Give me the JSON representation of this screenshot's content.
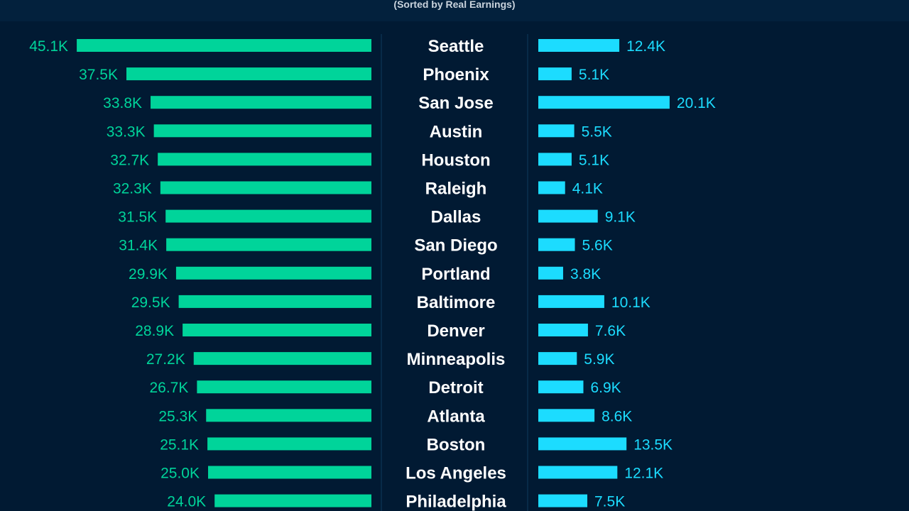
{
  "subtitle": "(Sorted by Real Earnings)",
  "colors": {
    "background": "#011a33",
    "header": "#03213d",
    "left_bar": "#00d49a",
    "right_bar": "#1cdcff",
    "city_text": "#ffffff",
    "divider": "#0f3a5c"
  },
  "chart_data": {
    "type": "bar",
    "orientation": "horizontal",
    "categories": [
      "Seattle",
      "Phoenix",
      "San Jose",
      "Austin",
      "Houston",
      "Raleigh",
      "Dallas",
      "San Diego",
      "Portland",
      "Baltimore",
      "Denver",
      "Minneapolis",
      "Detroit",
      "Atlanta",
      "Boston",
      "Los Angeles",
      "Philadelphia"
    ],
    "series": [
      {
        "values": [
          45.1,
          37.5,
          33.8,
          33.3,
          32.7,
          32.3,
          31.5,
          31.4,
          29.9,
          29.5,
          28.9,
          27.2,
          26.7,
          25.3,
          25.1,
          25.0,
          24.0
        ],
        "labels": [
          "45.1K",
          "37.5K",
          "33.8K",
          "33.3K",
          "32.7K",
          "32.3K",
          "31.5K",
          "31.4K",
          "29.9K",
          "29.5K",
          "28.9K",
          "27.2K",
          "26.7K",
          "25.3K",
          "25.1K",
          "25.0K",
          "24.0K"
        ]
      },
      {
        "values": [
          12.4,
          5.1,
          20.1,
          5.5,
          5.1,
          4.1,
          9.1,
          5.6,
          3.8,
          10.1,
          7.6,
          5.9,
          6.9,
          8.6,
          13.5,
          12.1,
          7.5
        ],
        "labels": [
          "12.4K",
          "5.1K",
          "20.1K",
          "5.5K",
          "5.1K",
          "4.1K",
          "9.1K",
          "5.6K",
          "3.8K",
          "10.1K",
          "7.6K",
          "5.9K",
          "6.9K",
          "8.6K",
          "13.5K",
          "12.1K",
          "7.5K"
        ]
      }
    ],
    "grid": false,
    "legend": "none"
  }
}
